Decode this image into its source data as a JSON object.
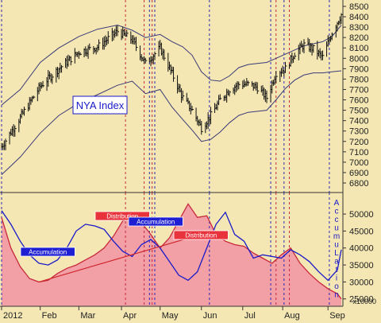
{
  "chart_data": [
    {
      "type": "line",
      "panel": "price",
      "series_label": "NYA Index",
      "ylim": [
        6800,
        8500
      ],
      "y_ticks": [
        8500,
        8400,
        8300,
        8200,
        8100,
        8000,
        7900,
        7800,
        7700,
        7600,
        7500,
        7400,
        7300,
        7200,
        7100,
        7000,
        6900,
        6800
      ],
      "x": [
        "2012-01-03",
        "2012-01-17",
        "2012-02-01",
        "2012-02-15",
        "2012-03-01",
        "2012-03-15",
        "2012-03-30",
        "2012-04-10",
        "2012-04-20",
        "2012-05-01",
        "2012-05-10",
        "2012-05-18",
        "2012-05-25",
        "2012-06-01",
        "2012-06-08",
        "2012-06-15",
        "2012-06-22",
        "2012-06-29",
        "2012-07-06",
        "2012-07-13",
        "2012-07-20",
        "2012-07-27",
        "2012-08-03",
        "2012-08-10",
        "2012-08-17",
        "2012-08-24",
        "2012-08-31",
        "2012-09-07",
        "2012-09-14"
      ],
      "series": [
        {
          "values": [
            7150,
            7430,
            7730,
            7900,
            8060,
            8110,
            8260,
            8180,
            7950,
            8100,
            7850,
            7620,
            7500,
            7330,
            7450,
            7600,
            7700,
            7750,
            7750,
            7720,
            7620,
            7860,
            7900,
            8050,
            8130,
            8090,
            8010,
            8250,
            8420
          ]
        },
        {
          "values": [
            7550,
            7700,
            7960,
            8100,
            8210,
            8280,
            8320,
            8270,
            8200,
            8230,
            8160,
            8110,
            8030,
            7870,
            7790,
            7780,
            7830,
            7910,
            7940,
            7950,
            7960,
            8000,
            8040,
            8080,
            8120,
            8140,
            8160,
            8210,
            8320
          ]
        },
        {
          "values": [
            6880,
            7050,
            7280,
            7450,
            7570,
            7650,
            7740,
            7780,
            7660,
            7700,
            7530,
            7410,
            7310,
            7200,
            7220,
            7290,
            7380,
            7450,
            7480,
            7490,
            7500,
            7600,
            7710,
            7790,
            7840,
            7860,
            7860,
            7870,
            7880
          ]
        }
      ],
      "markers": [
        {
          "date": "2012-01-03",
          "color": "#2a2ab8"
        },
        {
          "date": "2012-04-05",
          "color": "#c8283c"
        },
        {
          "date": "2012-04-19",
          "color": "#c8283c"
        },
        {
          "date": "2012-04-23",
          "color": "#2a2ab8"
        },
        {
          "date": "2012-04-25",
          "color": "#c8283c"
        },
        {
          "date": "2012-04-27",
          "color": "#2a2ab8"
        },
        {
          "date": "2012-06-07",
          "color": "#2a2ab8"
        },
        {
          "date": "2012-07-23",
          "color": "#2a2ab8"
        },
        {
          "date": "2012-07-27",
          "color": "#c8283c"
        },
        {
          "date": "2012-08-02",
          "color": "#2a2ab8"
        },
        {
          "date": "2012-08-06",
          "color": "#c8283c"
        },
        {
          "date": "2012-09-05",
          "color": "#2a2ab8"
        }
      ]
    },
    {
      "type": "area",
      "panel": "indicator",
      "ylim": [
        24000,
        54000
      ],
      "y_ticks": [
        50000,
        45000,
        40000,
        35000,
        30000,
        25000
      ],
      "ylabel": "AccumuLation",
      "scale_note": "x10000",
      "x_ticks": [
        "2012",
        "Feb",
        "Mar",
        "Apr",
        "May",
        "Jun",
        "Jul",
        "Aug",
        "Sep"
      ],
      "x_tick_dates": [
        "2012-01-03",
        "2012-02-01",
        "2012-03-01",
        "2012-04-02",
        "2012-05-01",
        "2012-06-01",
        "2012-07-02",
        "2012-08-01",
        "2012-09-04"
      ],
      "x": [
        "2012-01-03",
        "2012-01-10",
        "2012-01-17",
        "2012-01-24",
        "2012-01-31",
        "2012-02-07",
        "2012-02-14",
        "2012-02-21",
        "2012-02-28",
        "2012-03-06",
        "2012-03-13",
        "2012-03-20",
        "2012-03-27",
        "2012-04-03",
        "2012-04-10",
        "2012-04-17",
        "2012-04-24",
        "2012-05-01",
        "2012-05-08",
        "2012-05-15",
        "2012-05-22",
        "2012-05-29",
        "2012-06-05",
        "2012-06-12",
        "2012-06-19",
        "2012-06-26",
        "2012-07-03",
        "2012-07-10",
        "2012-07-17",
        "2012-07-24",
        "2012-07-31",
        "2012-08-07",
        "2012-08-14",
        "2012-08-21",
        "2012-08-28",
        "2012-09-04",
        "2012-09-11",
        "2012-09-14"
      ],
      "series": [
        {
          "name": "Distribution",
          "color": "#c8283c",
          "values": [
            49000,
            40000,
            34500,
            31000,
            30000,
            30500,
            32500,
            34000,
            35000,
            36500,
            38000,
            40000,
            43500,
            48000,
            49000,
            47500,
            44000,
            40000,
            43000,
            48000,
            53000,
            49000,
            49500,
            44000,
            42000,
            41000,
            40500,
            38500,
            37000,
            35500,
            38000,
            40000,
            35500,
            32500,
            30000,
            28000,
            26500,
            25000
          ]
        },
        {
          "name": "Accumulation",
          "color": "#1a1ac8",
          "values": [
            51000,
            47000,
            42000,
            38000,
            35500,
            35000,
            36500,
            40000,
            45000,
            47000,
            46500,
            45500,
            42000,
            39000,
            37500,
            41000,
            42500,
            40000,
            36000,
            32000,
            30500,
            33000,
            40000,
            47000,
            50500,
            44000,
            42000,
            37000,
            38000,
            37500,
            37000,
            39500,
            38000,
            36000,
            33000,
            30500,
            33500,
            39500
          ]
        }
      ],
      "trendlines": [
        {
          "name": "Distribution",
          "from": [
            "2012-01-31",
            30000
          ],
          "to": [
            "2012-06-05",
            44500
          ]
        }
      ],
      "annotations": [
        {
          "text": "Accumulation",
          "color": "#1a1ac8"
        },
        {
          "text": "Distribution",
          "color": "#c8283c"
        },
        {
          "text": "Accumulation",
          "color": "#1a1ac8"
        },
        {
          "text": "Distribution",
          "color": "#c8283c"
        }
      ]
    }
  ],
  "colors": {
    "background": "#f4e7b4",
    "price_bars": "#111111",
    "bands": "#3a3a78",
    "accumulation": "#1a1ac8",
    "distribution": "#c8283c",
    "distribution_fill": "#f2a0a6",
    "trendline": "#d02830"
  }
}
